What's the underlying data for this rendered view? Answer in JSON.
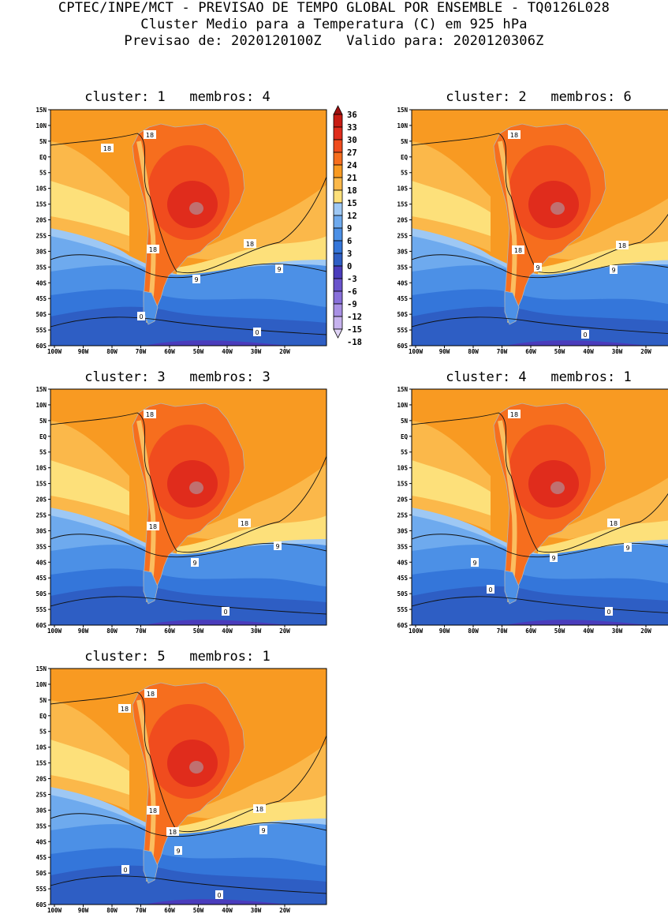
{
  "header": {
    "line1": "CPTEC/INPE/MCT - PREVISAO DE TEMPO GLOBAL POR ENSEMBLE - TQ0126L028",
    "line2": "Cluster Medio para a Temperatura (C) em 925 hPa",
    "line3": "Previsao de: 2020120100Z   Valido para: 2020120306Z"
  },
  "axes": {
    "lat_labels": [
      "15N",
      "10N",
      "5N",
      "EQ",
      "5S",
      "10S",
      "15S",
      "20S",
      "25S",
      "30S",
      "35S",
      "40S",
      "45S",
      "50S",
      "55S",
      "60S"
    ],
    "lon_labels": [
      "100W",
      "90W",
      "80W",
      "70W",
      "60W",
      "50W",
      "40W",
      "30W",
      "20W"
    ]
  },
  "panels": [
    {
      "title": "cluster: 1   membros: 4",
      "contour_labels": [
        "18",
        "18",
        "18",
        "18",
        "9",
        "9",
        "0",
        "0"
      ]
    },
    {
      "title": "cluster: 2   membros: 6",
      "contour_labels": [
        "18",
        "18",
        "18",
        "9",
        "9",
        "0"
      ]
    },
    {
      "title": "cluster: 3   membros: 3",
      "contour_labels": [
        "18",
        "18",
        "18",
        "9",
        "9",
        "0"
      ]
    },
    {
      "title": "cluster: 4   membros: 1",
      "contour_labels": [
        "18",
        "18",
        "9",
        "9",
        "9",
        "0",
        "0"
      ]
    },
    {
      "title": "cluster: 5   membros: 1",
      "contour_labels": [
        "18",
        "18",
        "18",
        "18",
        "18",
        "9",
        "9",
        "0",
        "0"
      ]
    }
  ],
  "legend": {
    "labels": [
      "36",
      "33",
      "30",
      "27",
      "24",
      "21",
      "18",
      "15",
      "12",
      "9",
      "6",
      "3",
      "0",
      "-3",
      "-6",
      "-9",
      "-12",
      "-15",
      "-18"
    ],
    "colors": [
      "#a01010",
      "#c81c14",
      "#e02c1c",
      "#f04c1e",
      "#f66e1e",
      "#f89a22",
      "#fbb84a",
      "#fde07a",
      "#9ec8f4",
      "#6eaaee",
      "#4c90e6",
      "#3476da",
      "#2e5ec4",
      "#4a3cbc",
      "#6a54cc",
      "#8870da",
      "#a890e4",
      "#c6b2ee",
      "#e0d4f6"
    ]
  },
  "colors": {
    "land_outline": "#b4b4b4",
    "contour_line": "#111111"
  }
}
